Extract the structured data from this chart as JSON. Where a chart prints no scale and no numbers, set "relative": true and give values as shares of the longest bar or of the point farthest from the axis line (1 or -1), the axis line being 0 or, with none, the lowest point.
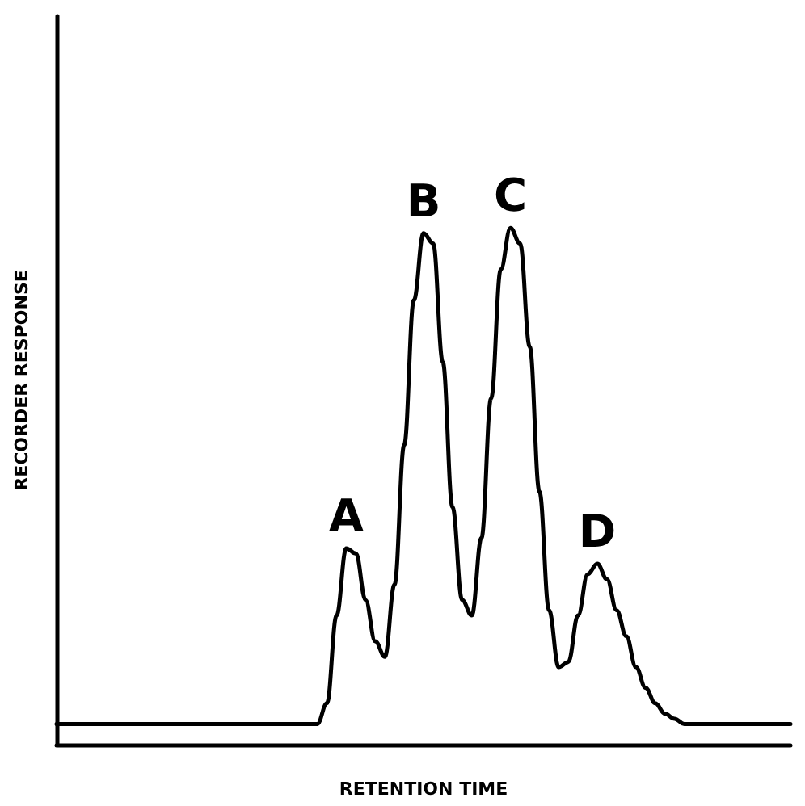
{
  "chart_data": {
    "type": "line",
    "relative": true,
    "xlabel": "RETENTION TIME",
    "ylabel": "RECORDER RESPONSE",
    "categories": [
      null,
      null,
      null,
      null,
      null,
      null,
      null,
      null,
      null,
      null,
      null,
      null,
      null,
      null,
      null,
      null,
      null,
      null,
      null,
      null,
      null,
      null,
      null,
      null,
      null,
      null,
      null,
      null,
      null,
      null,
      null,
      null,
      null,
      null,
      null,
      null,
      null,
      null,
      null,
      null,
      null,
      null,
      null,
      null,
      null,
      null,
      null,
      null,
      null,
      null,
      null,
      null,
      null,
      null,
      null,
      null,
      null,
      null,
      null,
      null,
      null,
      null,
      null,
      null,
      null,
      null,
      null,
      null,
      null,
      null,
      null,
      null,
      null,
      null,
      null,
      null,
      null
    ],
    "series": [
      {
        "color": "#000000",
        "values": [
          0.04,
          0.04,
          0.04,
          0.04,
          0.04,
          0.04,
          0.04,
          0.04,
          0.04,
          0.04,
          0.04,
          0.04,
          0.04,
          0.04,
          0.04,
          0.04,
          0.04,
          0.04,
          0.04,
          0.04,
          0.04,
          0.04,
          0.04,
          0.04,
          0.04,
          0.04,
          0.04,
          0.04,
          0.08,
          0.25,
          0.38,
          0.37,
          0.28,
          0.2,
          0.17,
          0.31,
          0.58,
          0.86,
          0.99,
          0.97,
          0.74,
          0.46,
          0.28,
          0.25,
          0.4,
          0.67,
          0.92,
          1.0,
          0.97,
          0.77,
          0.49,
          0.26,
          0.15,
          0.16,
          0.25,
          0.33,
          0.35,
          0.32,
          0.26,
          0.21,
          0.15,
          0.11,
          0.08,
          0.06,
          0.05,
          0.04,
          0.04,
          0.04,
          0.04,
          0.04,
          0.04,
          0.04,
          0.04,
          0.04,
          0.04,
          0.04,
          0.04
        ]
      }
    ],
    "annotations": [
      {
        "text": "A",
        "y": 0.38
      },
      {
        "text": "B",
        "y": 0.99
      },
      {
        "text": "C",
        "y": 1.0
      },
      {
        "text": "D",
        "y": 0.35
      }
    ],
    "marker": "none",
    "line_style": "solid"
  }
}
